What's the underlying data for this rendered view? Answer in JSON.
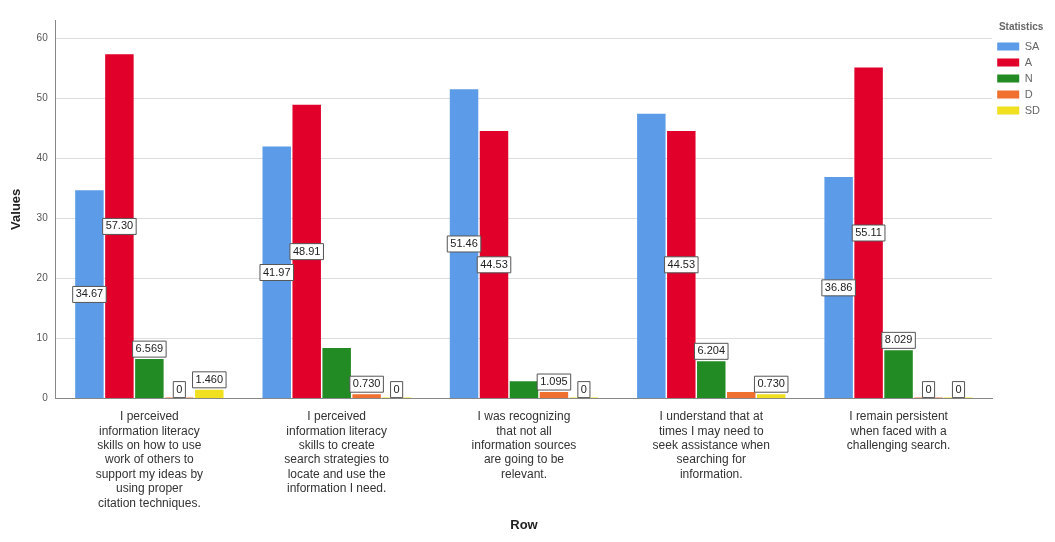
{
  "chart_data": {
    "type": "bar",
    "xlabel": "Row",
    "ylabel": "Values",
    "legend_title": "Statistics",
    "legend": "top right",
    "grid": "y",
    "categories": [
      "I perceived information literacy skills on how to use work of others to support my ideas by using proper citation techniques.",
      "I perceived information literacy skills to create search strategies to locate and use the information I need.",
      "I was recognizing that not all information sources are going to be relevant.",
      "I understand that at times I may need to seek assistance when searching for information.",
      "I remain persistent when faced with a challenging search."
    ],
    "ylim": [
      0,
      63
    ],
    "yticks": [
      0,
      10,
      20,
      30,
      40,
      50,
      60
    ],
    "series": [
      {
        "name": "SA",
        "color": "#5b9be8",
        "values": [
          34.67,
          41.97,
          51.46,
          47.4,
          36.86
        ],
        "value_labels": [
          "34.67",
          "41.97",
          "51.46",
          null,
          "36.86"
        ]
      },
      {
        "name": "A",
        "color": "#e0002a",
        "values": [
          57.3,
          48.91,
          44.53,
          44.53,
          55.11
        ],
        "value_labels": [
          "57.30",
          "48.91",
          "44.53",
          "44.53",
          "55.11"
        ]
      },
      {
        "name": "N",
        "color": "#238b23",
        "values": [
          6.569,
          8.4,
          2.9,
          6.204,
          8.029
        ],
        "value_labels": [
          "6.569",
          null,
          null,
          "6.204",
          "8.029"
        ]
      },
      {
        "name": "D",
        "color": "#f07030",
        "values": [
          0,
          0.73,
          1.095,
          1.1,
          0
        ],
        "value_labels": [
          "0",
          "0.730",
          "1.095",
          null,
          "0"
        ]
      },
      {
        "name": "SD",
        "color": "#f0e020",
        "values": [
          1.46,
          0,
          0,
          0.73,
          0
        ],
        "value_labels": [
          "1.460",
          "0",
          "0",
          "0.730",
          "0"
        ]
      }
    ]
  }
}
